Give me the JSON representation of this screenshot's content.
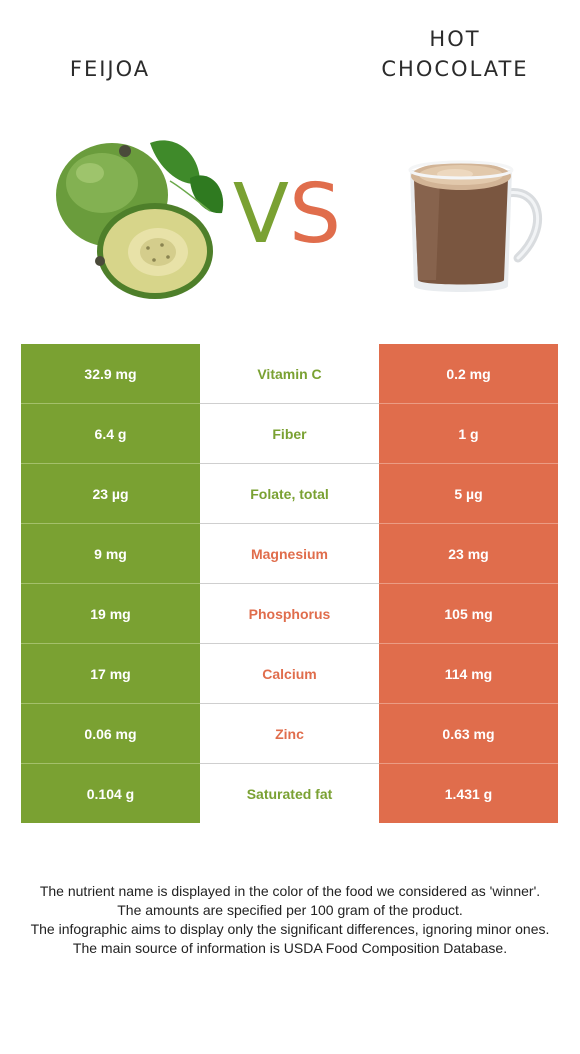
{
  "header": {
    "left_title": "FEIJOA",
    "right_title_line1": "HOT",
    "right_title_line2": "CHOCOLATE",
    "vs_v": "V",
    "vs_s": "S"
  },
  "colors": {
    "left_food": "#7aa132",
    "right_food": "#e06d4c"
  },
  "rows": [
    {
      "nutrient": "Vitamin C",
      "left": "32.9 mg",
      "right": "0.2 mg",
      "winner": "left"
    },
    {
      "nutrient": "Fiber",
      "left": "6.4 g",
      "right": "1 g",
      "winner": "left"
    },
    {
      "nutrient": "Folate, total",
      "left": "23 µg",
      "right": "5 µg",
      "winner": "left"
    },
    {
      "nutrient": "Magnesium",
      "left": "9 mg",
      "right": "23 mg",
      "winner": "right"
    },
    {
      "nutrient": "Phosphorus",
      "left": "19 mg",
      "right": "105 mg",
      "winner": "right"
    },
    {
      "nutrient": "Calcium",
      "left": "17 mg",
      "right": "114 mg",
      "winner": "right"
    },
    {
      "nutrient": "Zinc",
      "left": "0.06 mg",
      "right": "0.63 mg",
      "winner": "right"
    },
    {
      "nutrient": "Saturated fat",
      "left": "0.104 g",
      "right": "1.431 g",
      "winner": "left"
    }
  ],
  "notes": [
    "The nutrient name is displayed in the color of the food we considered as 'winner'.",
    "The amounts are specified per 100 gram of the product.",
    "The infographic aims to display only the significant differences, ignoring minor ones.",
    "The main source of information is USDA Food Composition Database."
  ],
  "icons": {
    "left_image": "feijoa-fruit-icon",
    "right_image": "hot-chocolate-mug-icon"
  }
}
